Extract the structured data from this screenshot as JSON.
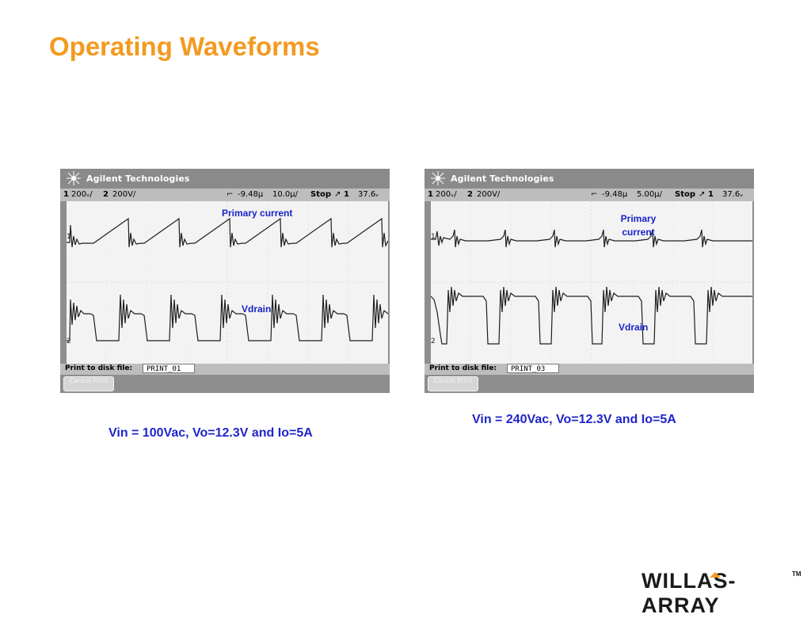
{
  "slide": {
    "title": "Operating Waveforms"
  },
  "scopes": [
    {
      "brand": "Agilent Technologies",
      "ch1_num": "1",
      "ch1_scale": "200ᵥ/",
      "ch2_num": "2",
      "ch2_scale": "200V/",
      "time_offset": "-9.48µ",
      "time_scale": "10.0µ/",
      "run_state": "Stop",
      "trigger_ch": "1",
      "trigger_level": "37.6ᵥ",
      "print_label": "Print to disk file:",
      "print_file": "PRINT_01",
      "cancel_label": "Cancel Print",
      "label_primary": "Primary current",
      "label_vdrain": "Vdrain",
      "caption": "Vin = 100Vac, Vo=12.3V and Io=5A"
    },
    {
      "brand": "Agilent Technologies",
      "ch1_num": "1",
      "ch1_scale": "200ᵥ/",
      "ch2_num": "2",
      "ch2_scale": "200V/",
      "time_offset": "-9.48µ",
      "time_scale": "5.00µ/",
      "run_state": "Stop",
      "trigger_ch": "1",
      "trigger_level": "37.6ᵥ",
      "print_label": "Print to disk file:",
      "print_file": "PRINT_03",
      "cancel_label": "Cancel Print",
      "label_primary": "Primary current",
      "label_vdrain": "Vdrain",
      "caption": "Vin = 240Vac, Vo=12.3V and Io=5A"
    }
  ],
  "logo": {
    "text": "WILLAS-ARRAY",
    "trademark": "TM"
  },
  "colors": {
    "title": "#f39a21",
    "caption": "#2025c9",
    "label": "#1a22c8"
  }
}
